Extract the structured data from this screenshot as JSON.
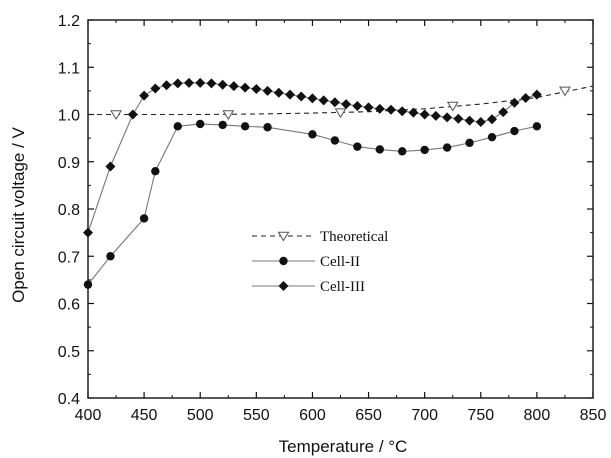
{
  "chart_data": {
    "type": "line",
    "xlabel": "Temperature / °C",
    "ylabel": "Open circuit voltage / V",
    "xlim": [
      400,
      850
    ],
    "ylim": [
      0.4,
      1.2
    ],
    "xticks": [
      400,
      450,
      500,
      550,
      600,
      650,
      700,
      750,
      800,
      850
    ],
    "yticks": [
      0.4,
      0.5,
      0.6,
      0.7,
      0.8,
      0.9,
      1.0,
      1.1,
      1.2
    ],
    "xtick_labels": [
      "400",
      "450",
      "500",
      "550",
      "600",
      "650",
      "700",
      "750",
      "800",
      "850"
    ],
    "ytick_labels": [
      "0.4",
      "0.5",
      "0.6",
      "0.7",
      "0.8",
      "0.9",
      "1.0",
      "1.1",
      "1.2"
    ],
    "grid": false,
    "legend_position": "center",
    "series": [
      {
        "name": "Theoretical",
        "marker": "triangle-down-open",
        "line": "dashed",
        "color": "#111111",
        "line_x": [
          400,
          450,
          500,
          550,
          600,
          650,
          700,
          750,
          800,
          850
        ],
        "line_y": [
          1.0,
          1.0,
          1.0,
          1.001,
          1.003,
          1.006,
          1.012,
          1.022,
          1.036,
          1.06
        ],
        "x": [
          425,
          525,
          625,
          725,
          825
        ],
        "y": [
          1.0,
          1.0,
          1.004,
          1.018,
          1.05
        ]
      },
      {
        "name": "Cell-II",
        "marker": "circle",
        "line": "solid",
        "color": "#111111",
        "x": [
          400,
          420,
          450,
          460,
          480,
          500,
          520,
          540,
          560,
          600,
          620,
          640,
          660,
          680,
          700,
          720,
          740,
          760,
          780,
          800
        ],
        "y": [
          0.64,
          0.7,
          0.78,
          0.88,
          0.975,
          0.98,
          0.978,
          0.975,
          0.973,
          0.958,
          0.945,
          0.932,
          0.926,
          0.922,
          0.925,
          0.93,
          0.94,
          0.952,
          0.965,
          0.975
        ]
      },
      {
        "name": "Cell-III",
        "marker": "diamond",
        "line": "solid",
        "color": "#111111",
        "x": [
          400,
          420,
          440,
          450,
          460,
          470,
          480,
          490,
          500,
          510,
          520,
          530,
          540,
          550,
          560,
          570,
          580,
          590,
          600,
          610,
          620,
          630,
          640,
          650,
          660,
          670,
          680,
          690,
          700,
          710,
          720,
          730,
          740,
          750,
          760,
          770,
          780,
          790,
          800
        ],
        "y": [
          0.75,
          0.89,
          1.0,
          1.04,
          1.055,
          1.062,
          1.066,
          1.067,
          1.067,
          1.066,
          1.063,
          1.06,
          1.057,
          1.054,
          1.05,
          1.046,
          1.042,
          1.038,
          1.034,
          1.03,
          1.026,
          1.022,
          1.018,
          1.015,
          1.012,
          1.01,
          1.007,
          1.004,
          1.0,
          0.997,
          0.994,
          0.991,
          0.987,
          0.984,
          0.99,
          1.005,
          1.025,
          1.035,
          1.042
        ]
      }
    ]
  }
}
